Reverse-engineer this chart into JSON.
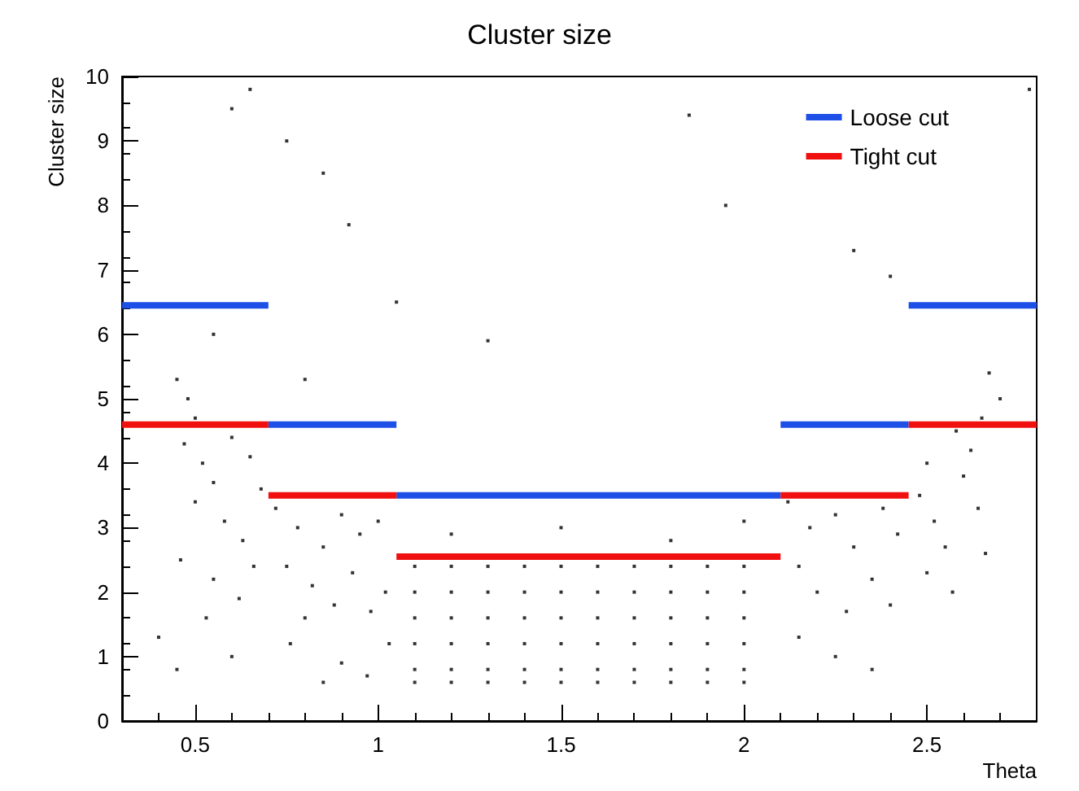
{
  "chart_data": {
    "type": "scatter",
    "title": "Cluster size",
    "xlabel": "Theta",
    "ylabel": "Cluster size",
    "xlim": [
      0.3,
      2.8
    ],
    "xticks": [
      0.5,
      1,
      1.5,
      2,
      2.5
    ],
    "ylim": [
      0,
      10
    ],
    "yticks": [
      0,
      1,
      2,
      3,
      4,
      5,
      6,
      7,
      8,
      9,
      10
    ],
    "grid": false,
    "legend": "top right",
    "series": [
      {
        "color": "#000000",
        "marker": "square",
        "x": [
          0.45,
          0.48,
          0.5,
          0.47,
          0.52,
          0.55,
          0.6,
          0.65,
          0.5,
          0.58,
          0.63,
          0.46,
          0.55,
          0.62,
          0.68,
          0.53,
          0.4,
          0.6,
          0.45,
          0.66,
          0.72,
          0.78,
          0.85,
          0.9,
          0.95,
          1.0,
          0.75,
          0.82,
          0.88,
          0.93,
          0.98,
          1.02,
          0.8,
          0.76,
          0.9,
          0.97,
          1.03,
          0.85,
          1.1,
          1.1,
          1.1,
          1.1,
          1.1,
          1.1,
          1.2,
          1.2,
          1.2,
          1.2,
          1.2,
          1.2,
          1.3,
          1.3,
          1.3,
          1.3,
          1.3,
          1.3,
          1.4,
          1.4,
          1.4,
          1.4,
          1.4,
          1.4,
          1.5,
          1.5,
          1.5,
          1.5,
          1.5,
          1.5,
          1.6,
          1.6,
          1.6,
          1.6,
          1.6,
          1.6,
          1.7,
          1.7,
          1.7,
          1.7,
          1.7,
          1.7,
          1.8,
          1.8,
          1.8,
          1.8,
          1.8,
          1.8,
          1.9,
          1.9,
          1.9,
          1.9,
          1.9,
          1.9,
          2.0,
          2.0,
          2.0,
          2.0,
          2.0,
          2.0,
          1.2,
          1.5,
          1.8,
          2.0,
          2.12,
          2.18,
          2.25,
          2.3,
          2.38,
          2.42,
          2.15,
          2.2,
          2.28,
          2.35,
          2.4,
          2.15,
          2.25,
          2.35,
          2.48,
          2.52,
          2.55,
          2.6,
          2.62,
          2.65,
          2.67,
          2.58,
          2.5,
          2.64,
          2.5,
          2.57,
          2.66,
          2.7,
          0.6,
          0.65,
          0.75,
          0.85,
          0.92,
          1.05,
          1.3,
          1.85,
          1.95,
          2.3,
          2.4,
          2.78,
          0.55,
          0.8
        ],
        "values": [
          5.3,
          5.0,
          4.7,
          4.3,
          4.0,
          3.7,
          4.4,
          4.1,
          3.4,
          3.1,
          2.8,
          2.5,
          2.2,
          1.9,
          3.6,
          1.6,
          1.3,
          1.0,
          0.8,
          2.4,
          3.3,
          3.0,
          2.7,
          3.2,
          2.9,
          3.1,
          2.4,
          2.1,
          1.8,
          2.3,
          1.7,
          2.0,
          1.6,
          1.2,
          0.9,
          0.7,
          1.2,
          0.6,
          2.4,
          2.0,
          1.6,
          1.2,
          0.8,
          0.6,
          2.4,
          2.0,
          1.6,
          1.2,
          0.8,
          0.6,
          2.4,
          2.0,
          1.6,
          1.2,
          0.8,
          0.6,
          2.4,
          2.0,
          1.6,
          1.2,
          0.8,
          0.6,
          2.4,
          2.0,
          1.6,
          1.2,
          0.8,
          0.6,
          2.4,
          2.0,
          1.6,
          1.2,
          0.8,
          0.6,
          2.4,
          2.0,
          1.6,
          1.2,
          0.8,
          0.6,
          2.4,
          2.0,
          1.6,
          1.2,
          0.8,
          0.6,
          2.4,
          2.0,
          1.6,
          1.2,
          0.8,
          0.6,
          2.4,
          2.0,
          1.6,
          1.2,
          0.8,
          0.6,
          2.9,
          3.0,
          2.8,
          3.1,
          3.4,
          3.0,
          3.2,
          2.7,
          3.3,
          2.9,
          2.4,
          2.0,
          1.7,
          2.2,
          1.8,
          1.3,
          1.0,
          0.8,
          3.5,
          3.1,
          2.7,
          3.8,
          4.2,
          4.7,
          5.4,
          4.5,
          4.0,
          3.3,
          2.3,
          2.0,
          2.6,
          5.0,
          9.5,
          9.8,
          9.0,
          8.5,
          7.7,
          6.5,
          5.9,
          9.4,
          8.0,
          7.3,
          6.9,
          9.8,
          6.0,
          5.3
        ]
      },
      {
        "type": "line",
        "name": "Loose cut",
        "color": "#1e4fe6",
        "marker": "none",
        "x": [
          0.3,
          0.7
        ],
        "values": [
          6.45,
          6.45
        ]
      },
      {
        "type": "line",
        "color": "#1e4fe6",
        "marker": "none",
        "x": [
          0.7,
          1.05
        ],
        "values": [
          4.6,
          4.6
        ]
      },
      {
        "type": "line",
        "color": "#1e4fe6",
        "marker": "none",
        "x": [
          1.05,
          2.1
        ],
        "values": [
          3.5,
          3.5
        ]
      },
      {
        "type": "line",
        "color": "#1e4fe6",
        "marker": "none",
        "x": [
          2.1,
          2.45
        ],
        "values": [
          4.6,
          4.6
        ]
      },
      {
        "type": "line",
        "color": "#1e4fe6",
        "marker": "none",
        "x": [
          2.45,
          2.8
        ],
        "values": [
          6.45,
          6.45
        ]
      },
      {
        "type": "line",
        "name": "Tight cut",
        "color": "#f01010",
        "marker": "none",
        "x": [
          0.3,
          0.7
        ],
        "values": [
          4.6,
          4.6
        ]
      },
      {
        "type": "line",
        "color": "#f01010",
        "marker": "none",
        "x": [
          0.7,
          1.05
        ],
        "values": [
          3.5,
          3.5
        ]
      },
      {
        "type": "line",
        "color": "#f01010",
        "marker": "none",
        "x": [
          1.05,
          2.1
        ],
        "values": [
          2.55,
          2.55
        ]
      },
      {
        "type": "line",
        "color": "#f01010",
        "marker": "none",
        "x": [
          2.1,
          2.45
        ],
        "values": [
          3.5,
          3.5
        ]
      },
      {
        "type": "line",
        "color": "#f01010",
        "marker": "none",
        "x": [
          2.45,
          2.8
        ],
        "values": [
          4.6,
          4.6
        ]
      }
    ]
  }
}
